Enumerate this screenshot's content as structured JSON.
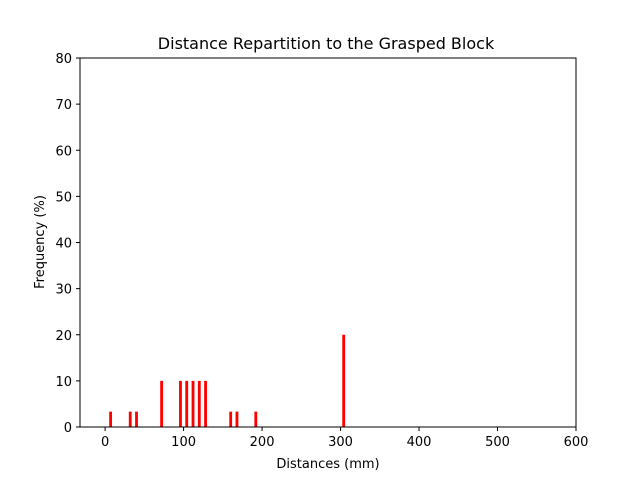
{
  "chart_data": {
    "type": "bar",
    "title": "Distance Repartition to the Grasped Block",
    "xlabel": "Distances (mm)",
    "ylabel": "Frequency (%)",
    "xlim": [
      -32,
      600
    ],
    "ylim": [
      0,
      80
    ],
    "xticks": [
      0,
      100,
      200,
      300,
      400,
      500,
      600
    ],
    "yticks": [
      0,
      10,
      20,
      30,
      40,
      50,
      60,
      70,
      80
    ],
    "grid": false,
    "bar_color": "#ff0000",
    "bar_width": 3.6,
    "x": [
      7,
      32,
      40,
      72,
      96,
      104,
      112,
      120,
      128,
      160,
      168,
      192,
      304
    ],
    "values": [
      3.33,
      3.33,
      3.33,
      10,
      10,
      10,
      10,
      10,
      10,
      3.33,
      3.33,
      3.33,
      20
    ]
  }
}
